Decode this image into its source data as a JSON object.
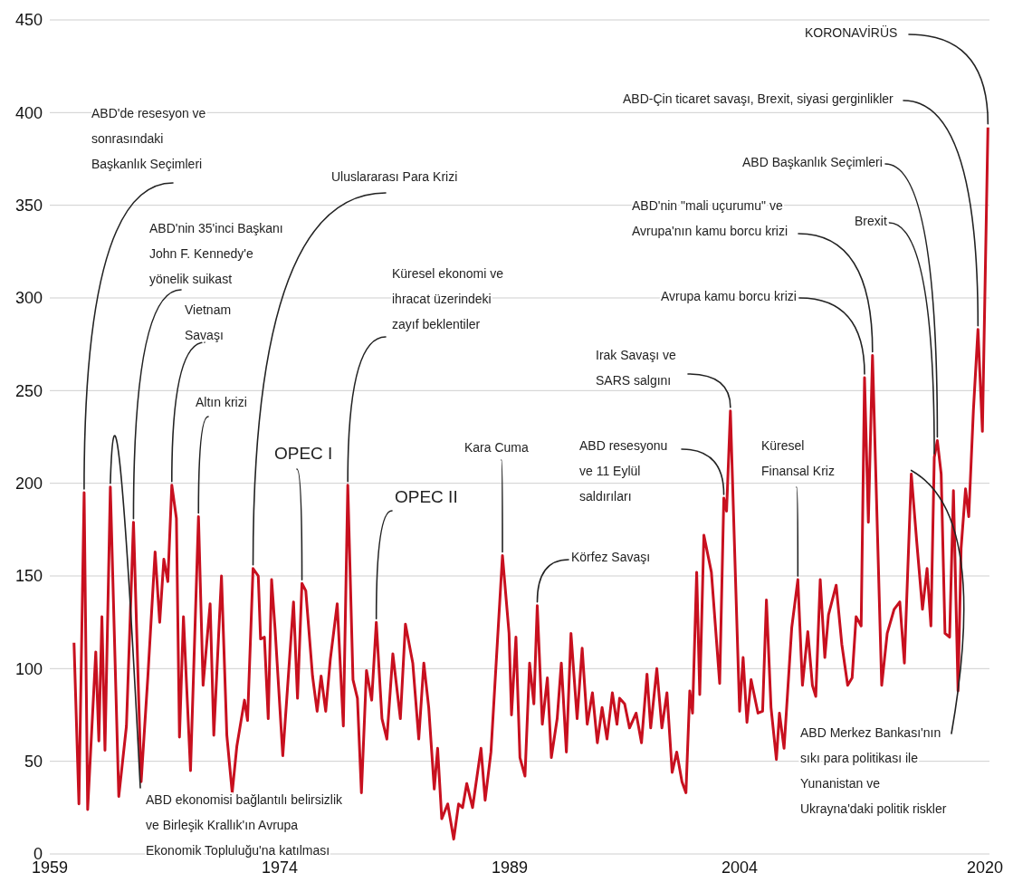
{
  "chart_data": {
    "type": "line",
    "color": "#c8101f",
    "grid": "y",
    "xlim": [
      1959,
      2020.3
    ],
    "xticks": [
      1959,
      1974,
      1989,
      2004,
      2020
    ],
    "ylim": [
      0,
      450
    ],
    "yticks": [
      0,
      50,
      100,
      150,
      200,
      250,
      300,
      350,
      400,
      450
    ],
    "x": [
      1960.58,
      1960.9,
      1961.24,
      1961.47,
      1962.0,
      1962.2,
      1962.4,
      1962.6,
      1962.95,
      1963.5,
      1964.0,
      1964.46,
      1964.96,
      1965.4,
      1965.87,
      1966.17,
      1966.44,
      1966.7,
      1966.96,
      1967.26,
      1967.46,
      1967.72,
      1968.18,
      1968.7,
      1969.0,
      1969.46,
      1969.7,
      1970.2,
      1970.55,
      1970.9,
      1971.2,
      1971.7,
      1971.9,
      1972.26,
      1972.6,
      1972.75,
      1973.0,
      1973.25,
      1973.47,
      1973.7,
      1974.2,
      1974.9,
      1975.16,
      1975.45,
      1975.7,
      1976.14,
      1976.44,
      1976.7,
      1977.0,
      1977.3,
      1977.75,
      1978.15,
      1978.44,
      1978.78,
      1979.07,
      1979.33,
      1979.66,
      1980.0,
      1980.3,
      1980.67,
      1980.99,
      1981.38,
      1981.87,
      1982.2,
      1982.68,
      1983.07,
      1983.4,
      1983.72,
      1984.08,
      1984.3,
      1984.57,
      1984.96,
      1985.35,
      1985.67,
      1985.93,
      1986.2,
      1986.58,
      1987.13,
      1987.4,
      1987.78,
      1988.53,
      1988.96,
      1989.12,
      1989.41,
      1989.67,
      1990.0,
      1990.3,
      1990.58,
      1990.8,
      1991.13,
      1991.46,
      1991.72,
      1992.1,
      1992.37,
      1992.7,
      1993.0,
      1993.4,
      1993.73,
      1994.06,
      1994.4,
      1994.72,
      1995.03,
      1995.35,
      1995.7,
      1996.0,
      1996.17,
      1996.5,
      1996.82,
      1997.25,
      1997.6,
      1997.96,
      1998.2,
      1998.6,
      1998.93,
      1999.26,
      1999.6,
      1999.9,
      2000.24,
      2000.5,
      2000.75,
      2000.93,
      2001.2,
      2001.4,
      2001.67,
      2002.16,
      2002.7,
      2002.97,
      2003.15,
      2003.4,
      2003.72,
      2004.0,
      2004.23,
      2004.48,
      2004.75,
      2005.2,
      2005.5,
      2005.75,
      2006.05,
      2006.4,
      2006.6,
      2006.9,
      2007.4,
      2007.8,
      2008.1,
      2008.45,
      2008.75,
      2008.97,
      2009.26,
      2009.56,
      2009.8,
      2010.3,
      2010.67,
      2011.05,
      2011.34,
      2011.6,
      2011.93,
      2012.15,
      2012.4,
      2012.67,
      2013.27,
      2013.63,
      2014.08,
      2014.45,
      2014.75,
      2015.2,
      2015.56,
      2015.93,
      2016.23,
      2016.48,
      2016.7,
      2016.9,
      2017.15,
      2017.4,
      2017.7,
      2017.95,
      2018.25,
      2018.45,
      2018.74,
      2018.95,
      2019.25,
      2019.55,
      2019.84,
      2020.2
    ],
    "values": [
      114,
      27,
      195,
      24,
      109,
      61,
      128,
      56,
      198,
      31,
      69,
      179,
      39,
      96,
      163,
      125,
      159,
      147,
      199,
      181,
      63,
      128,
      45,
      182,
      91,
      135,
      64,
      150,
      64,
      33,
      58,
      83,
      72,
      154,
      150,
      116,
      117,
      73,
      148,
      121,
      53,
      136,
      84,
      146,
      142,
      96,
      77,
      96,
      77,
      105,
      135,
      69,
      199,
      94,
      84,
      33,
      99,
      83,
      125,
      73,
      62,
      108,
      73,
      124,
      103,
      62,
      103,
      79,
      35,
      57,
      19,
      27,
      8,
      27,
      25,
      38,
      25,
      57,
      29,
      55,
      161,
      119,
      75,
      117,
      52,
      42,
      103,
      81,
      134,
      70,
      95,
      52,
      73,
      103,
      55,
      119,
      73,
      111,
      70,
      87,
      60,
      79,
      62,
      87,
      70,
      84,
      81,
      68,
      76,
      60,
      97,
      68,
      100,
      68,
      87,
      44,
      55,
      39,
      33,
      88,
      76,
      152,
      86,
      172,
      152,
      92,
      192,
      185,
      239,
      152,
      77,
      106,
      71,
      94,
      76,
      77,
      137,
      79,
      51,
      76,
      57,
      122,
      148,
      91,
      120,
      91,
      85,
      148,
      106,
      129,
      145,
      113,
      91,
      95,
      128,
      123,
      257,
      179,
      269,
      91,
      119,
      132,
      136,
      103,
      205,
      168,
      132,
      154,
      123,
      214,
      223,
      205,
      119,
      117,
      196,
      88,
      165,
      197,
      182,
      239,
      283,
      228,
      392
    ],
    "annotations": [
      {
        "text": "ABD'de resesyon ve\nsonrasındaki\nBaşkanlık Seçimleri",
        "x": 1961.24,
        "y": 195
      },
      {
        "text": "ABD'nin 35'inci Başkanı\nJohn F. Kennedy'e\nyönelik suikast",
        "x": 1964.46,
        "y": 179
      },
      {
        "text": "Vietnam\nSavaşı",
        "x": 1966.96,
        "y": 199
      },
      {
        "text": "Altın krizi",
        "x": 1968.7,
        "y": 182
      },
      {
        "text": "ABD ekonomisi bağlantılı belirsizlik\nve Birleşik Krallık'ın Avrupa\nEkonomik Topluluğu'na katılması",
        "x": 1962.95,
        "y": 198
      },
      {
        "text": "Uluslararası Para Krizi",
        "x": 1972.26,
        "y": 154
      },
      {
        "text": "OPEC I",
        "x": 1975.45,
        "y": 146
      },
      {
        "text": "Küresel ekonomi ve\nihracat üzerindeki\nzayıf beklentiler",
        "x": 1978.44,
        "y": 199
      },
      {
        "text": "OPEC II",
        "x": 1980.3,
        "y": 125
      },
      {
        "text": "Kara Cuma",
        "x": 1988.53,
        "y": 161
      },
      {
        "text": "Körfez Savaşı",
        "x": 1990.8,
        "y": 134
      },
      {
        "text": "ABD resesyonu\nve 11 Eylül\nsaldırıları",
        "x": 2002.97,
        "y": 192
      },
      {
        "text": "Irak Savaşı ve\nSARS salgını",
        "x": 2003.4,
        "y": 239
      },
      {
        "text": "Küresel\nFinansal Kriz",
        "x": 2007.8,
        "y": 148
      },
      {
        "text": "Avrupa kamu borcu krizi",
        "x": 2012.15,
        "y": 257
      },
      {
        "text": "ABD'nin \"mali uçurumu\" ve\nAvrupa'nın kamu borcu krizi",
        "x": 2012.67,
        "y": 269
      },
      {
        "text": "Brexit",
        "x": 2016.7,
        "y": 214
      },
      {
        "text": "ABD Başkanlık Seçimleri",
        "x": 2016.9,
        "y": 223
      },
      {
        "text": "ABD-Çin ticaret savaşı, Brexit, siyasi gerginlikler",
        "x": 2019.55,
        "y": 283
      },
      {
        "text": "KORONAVİRÜS",
        "x": 2020.2,
        "y": 392
      },
      {
        "text": "ABD Merkez Bankası'nın\nsıkı para politikası ile\nYunanistan ve\nUkrayna'daki politik riskler",
        "x": 2015.2,
        "y": 205
      }
    ]
  }
}
